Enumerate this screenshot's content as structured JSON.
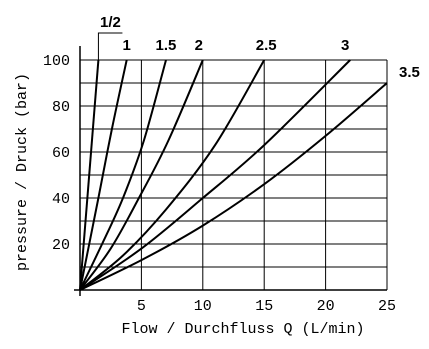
{
  "chart_data": {
    "type": "line",
    "title": "",
    "xlabel": "Flow / Durchfluss Q (L/min)",
    "ylabel": "pressure / Druck (bar)",
    "xlim": [
      0,
      25
    ],
    "ylim": [
      0,
      100
    ],
    "x_ticks": [
      5,
      10,
      15,
      20,
      25
    ],
    "y_ticks": [
      20,
      40,
      60,
      80,
      100
    ],
    "x_gridlines": [
      5,
      10,
      15,
      20,
      25
    ],
    "y_gridlines": [
      10,
      20,
      30,
      40,
      50,
      60,
      70,
      80,
      90,
      100
    ],
    "grid": true,
    "series": [
      {
        "name": "1/2",
        "x": [
          0,
          1.5
        ],
        "y": [
          0,
          100
        ]
      },
      {
        "name": "1",
        "x": [
          0,
          1.5,
          2.6,
          3.8
        ],
        "y": [
          0,
          40,
          70,
          100
        ]
      },
      {
        "name": "1.5",
        "x": [
          0,
          1.8,
          3.5,
          5.2,
          7.0
        ],
        "y": [
          0,
          20,
          40,
          65,
          100
        ]
      },
      {
        "name": "2",
        "x": [
          0,
          2.5,
          4.8,
          7.2,
          10.0
        ],
        "y": [
          0,
          18,
          40,
          65,
          100
        ]
      },
      {
        "name": "2.5",
        "x": [
          0,
          3.5,
          7.0,
          11.0,
          15.0
        ],
        "y": [
          0,
          15,
          35,
          63,
          100
        ]
      },
      {
        "name": "3",
        "x": [
          0,
          5.0,
          10.0,
          15.0,
          22.0
        ],
        "y": [
          0,
          18,
          40,
          63,
          100
        ]
      },
      {
        "name": "3.5",
        "x": [
          0,
          5.0,
          10.0,
          15.0,
          20.0,
          25.0
        ],
        "y": [
          0,
          13,
          28,
          46,
          67,
          90
        ]
      }
    ]
  }
}
